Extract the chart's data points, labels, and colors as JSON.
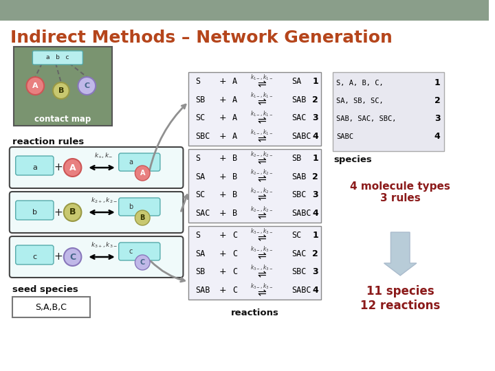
{
  "title": "Indirect Methods – Network Generation",
  "title_color": "#b5451b",
  "bg_color": "#ffffff",
  "header_bg": "#8a9e8a",
  "contact_map_bg": "#7a9470",
  "contact_map_label": "contact map",
  "node_a_color": "#e88080",
  "node_b_color": "#c8c870",
  "node_c_color": "#c0b8e8",
  "abc_bar_color": "#b8eeee",
  "species_box_bg": "#e8e8f0",
  "rule_box_bg": "#f0fafa",
  "dark_red": "#8b1a1a",
  "reaction_rules_label": "reaction rules",
  "seed_species_label": "seed species",
  "seed_species_text": "S,A,B,C",
  "reactions_label": "reactions",
  "species_label": "species",
  "mol_types_text": "4 molecule types\n3 rules",
  "result_text": "11 species\n12 reactions",
  "species_box_lines": [
    "S, A, B, C,",
    "SA, SB, SC,",
    "SAB, SAC, SBC,",
    "SABC"
  ],
  "species_box_nums": [
    "1",
    "2",
    "3",
    "4"
  ],
  "reaction_blocks": [
    {
      "rows": [
        {
          "left": "S",
          "mid": "A",
          "right": "SA",
          "num": "1"
        },
        {
          "left": "SB",
          "mid": "A",
          "right": "SAB",
          "num": "2"
        },
        {
          "left": "SC",
          "mid": "A",
          "right": "SAC",
          "num": "3"
        },
        {
          "left": "SBC",
          "mid": "A",
          "right": "SABC",
          "num": "4"
        }
      ],
      "krate_label": "$k_{1-}, k_{1-}$"
    },
    {
      "rows": [
        {
          "left": "S",
          "mid": "B",
          "right": "SB",
          "num": "1"
        },
        {
          "left": "SA",
          "mid": "B",
          "right": "SAB",
          "num": "2"
        },
        {
          "left": "SC",
          "mid": "B",
          "right": "SBC",
          "num": "3"
        },
        {
          "left": "SAC",
          "mid": "B",
          "right": "SABC",
          "num": "4"
        }
      ],
      "krate_label": "$k_{2-}, k_{2-}$"
    },
    {
      "rows": [
        {
          "left": "S",
          "mid": "C",
          "right": "SC",
          "num": "1"
        },
        {
          "left": "SA",
          "mid": "C",
          "right": "SAC",
          "num": "2"
        },
        {
          "left": "SB",
          "mid": "C",
          "right": "SBC",
          "num": "3"
        },
        {
          "left": "SAB",
          "mid": "C",
          "right": "SABC",
          "num": "4"
        }
      ],
      "krate_label": "$k_{3-}, k_{3-}$"
    }
  ]
}
